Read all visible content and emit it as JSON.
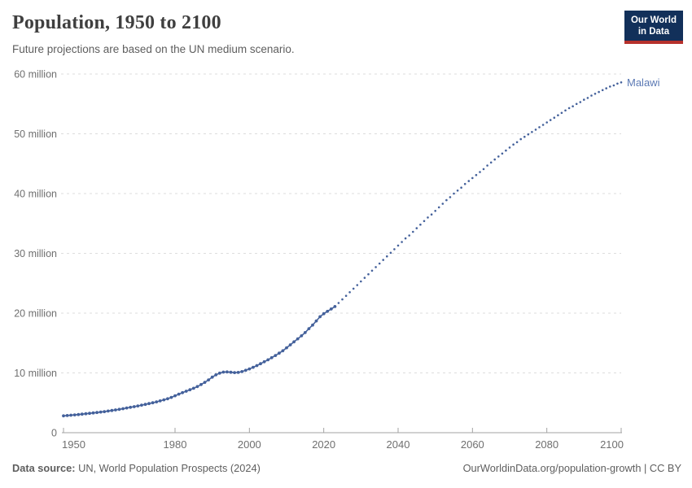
{
  "header": {
    "title": "Population, 1950 to 2100",
    "subtitle": "Future projections are based on the UN medium scenario.",
    "logo": {
      "line1": "Our World",
      "line2": "in Data"
    }
  },
  "footer": {
    "source_label": "Data source:",
    "source_text": " UN, World Population Prospects (2024)",
    "link_text": "OurWorldinData.org/population-growth | CC BY"
  },
  "colors": {
    "series": "#44619b",
    "entity_label": "#5b79b4",
    "grid": "#dddddd",
    "axis": "#a3a3a3",
    "axis_text": "#6f6f6f",
    "logo_bg": "#12305a",
    "logo_accent": "#b6312c"
  },
  "chart_data": {
    "type": "line",
    "title": "Population, 1950 to 2100",
    "subtitle": "Future projections are based on the UN medium scenario.",
    "entity": "Malawi",
    "unit": "people (millions)",
    "xlim": [
      1950,
      2100
    ],
    "ylim": [
      0,
      63
    ],
    "grid": "horizontal-dashed",
    "legend_position": "end-of-line-label",
    "x_ticks": [
      1950,
      1980,
      2000,
      2020,
      2040,
      2060,
      2080,
      2100
    ],
    "y_ticks": [
      {
        "value": 0,
        "label": "0"
      },
      {
        "value": 10,
        "label": "10 million"
      },
      {
        "value": 20,
        "label": "20 million"
      },
      {
        "value": 30,
        "label": "30 million"
      },
      {
        "value": 40,
        "label": "40 million"
      },
      {
        "value": 50,
        "label": "50 million"
      },
      {
        "value": 60,
        "label": "60 million"
      }
    ],
    "series": [
      {
        "name": "Malawi — historical estimates",
        "style": "solid_line_with_dot_markers",
        "color": "#44619b",
        "year_start": 1950,
        "year_end": 2023,
        "year_step": 1,
        "values": [
          2.82,
          2.87,
          2.93,
          2.98,
          3.04,
          3.1,
          3.17,
          3.24,
          3.31,
          3.38,
          3.45,
          3.53,
          3.62,
          3.71,
          3.81,
          3.91,
          4.02,
          4.13,
          4.24,
          4.36,
          4.48,
          4.61,
          4.74,
          4.87,
          5.01,
          5.16,
          5.32,
          5.49,
          5.68,
          5.9,
          6.18,
          6.45,
          6.7,
          6.94,
          7.18,
          7.43,
          7.72,
          8.05,
          8.42,
          8.83,
          9.29,
          9.67,
          9.96,
          10.14,
          10.17,
          10.11,
          10.05,
          10.08,
          10.22,
          10.43,
          10.67,
          10.94,
          11.23,
          11.54,
          11.86,
          12.19,
          12.54,
          12.91,
          13.3,
          13.7,
          14.2,
          14.7,
          15.2,
          15.7,
          16.2,
          16.75,
          17.4,
          18.0,
          18.7,
          19.4,
          19.9,
          20.3,
          20.7,
          21.1
        ]
      },
      {
        "name": "Malawi — UN medium scenario projection",
        "style": "dotted",
        "color": "#44619b",
        "year_start": 2024,
        "year_end": 2100,
        "year_step": 1,
        "values": [
          21.7,
          22.3,
          22.9,
          23.5,
          24.1,
          24.7,
          25.3,
          25.9,
          26.5,
          27.1,
          27.7,
          28.3,
          28.9,
          29.5,
          30.1,
          30.7,
          31.3,
          31.9,
          32.5,
          33.0,
          33.6,
          34.2,
          34.8,
          35.4,
          36.0,
          36.5,
          37.1,
          37.7,
          38.3,
          38.9,
          39.4,
          40.0,
          40.5,
          41.0,
          41.6,
          42.1,
          42.6,
          43.1,
          43.6,
          44.1,
          44.7,
          45.2,
          45.7,
          46.2,
          46.7,
          47.2,
          47.7,
          48.2,
          48.6,
          49.1,
          49.5,
          49.9,
          50.3,
          50.7,
          51.1,
          51.5,
          51.9,
          52.3,
          52.7,
          53.1,
          53.5,
          53.9,
          54.3,
          54.6,
          55.0,
          55.3,
          55.7,
          56.0,
          56.4,
          56.7,
          57.0,
          57.3,
          57.6,
          57.9,
          58.1,
          58.4,
          58.6
        ]
      }
    ]
  }
}
